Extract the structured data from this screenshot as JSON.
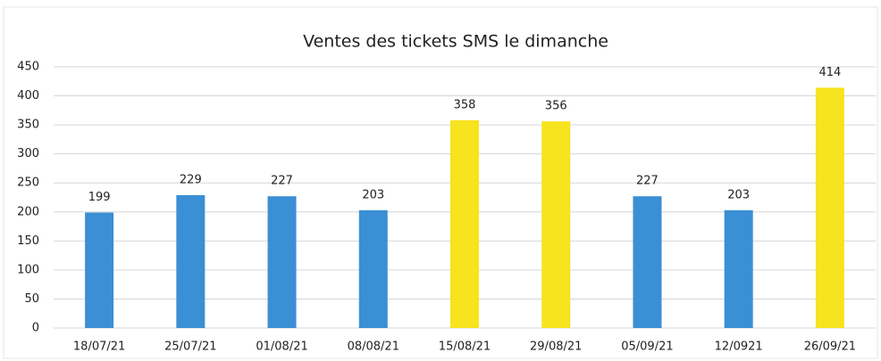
{
  "chart_data": {
    "type": "bar",
    "title": "Ventes des tickets SMS le dimanche",
    "categories": [
      "18/07/21",
      "25/07/21",
      "01/08/21",
      "08/08/21",
      "15/08/21",
      "29/08/21",
      "05/09/21",
      "12/0921",
      "26/09/21"
    ],
    "values": [
      199,
      229,
      227,
      203,
      358,
      356,
      227,
      203,
      414
    ],
    "colors": [
      "#3b8fd4",
      "#3b8fd4",
      "#3b8fd4",
      "#3b8fd4",
      "#f7e31e",
      "#f7e31e",
      "#3b8fd4",
      "#3b8fd4",
      "#f7e31e"
    ],
    "ylim": [
      0,
      450
    ],
    "yticks": [
      0,
      50,
      100,
      150,
      200,
      250,
      300,
      350,
      400,
      450
    ],
    "grid": true
  }
}
